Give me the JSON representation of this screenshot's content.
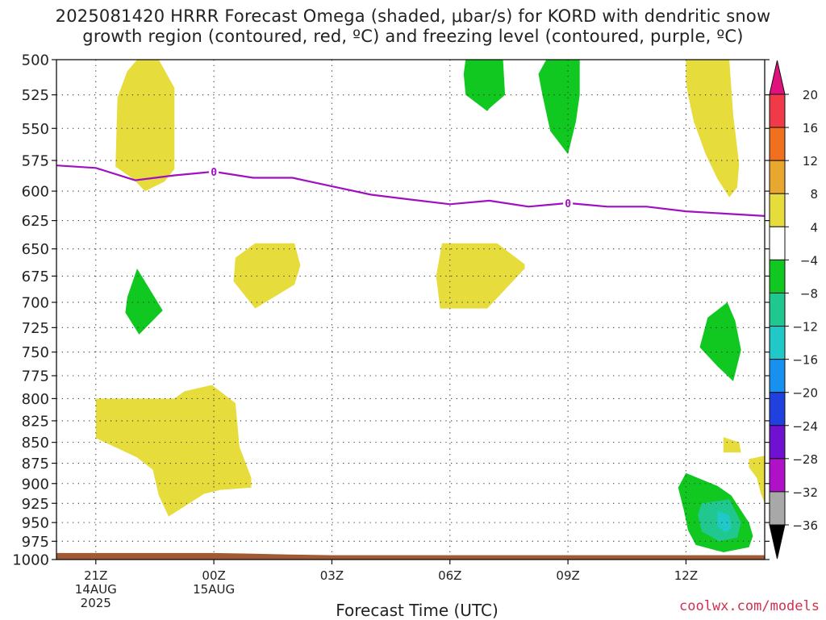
{
  "header": {
    "title_line1": "2025081420 HRRR Forecast Omega (shaded, μbar/s) for KORD with dendritic snow",
    "title_line2": "growth region (contoured, red, ºC) and freezing level (contoured, purple, ºC)"
  },
  "footer": {
    "credit": "coolwx.com/models"
  },
  "chart_data": {
    "type": "heatmap",
    "title": "2025081420 HRRR Forecast Omega (shaded, μbar/s) for KORD with dendritic snow growth region (contoured, red, ºC) and freezing level (contoured, purple, ºC)",
    "xlabel": "Forecast Time (UTC)",
    "ylabel": "",
    "x_unit": "hours from 2025-08-14 20Z",
    "xlim": [
      0,
      18
    ],
    "ylim": [
      1000,
      500
    ],
    "y_scale": "log-pressure",
    "grid": true,
    "x_ticks": [
      {
        "hour": 1,
        "label": "21Z",
        "sub": [
          "14AUG",
          "2025"
        ]
      },
      {
        "hour": 4,
        "label": "00Z",
        "sub": [
          "15AUG"
        ]
      },
      {
        "hour": 7,
        "label": "03Z",
        "sub": []
      },
      {
        "hour": 10,
        "label": "06Z",
        "sub": []
      },
      {
        "hour": 13,
        "label": "09Z",
        "sub": []
      },
      {
        "hour": 16,
        "label": "12Z",
        "sub": []
      }
    ],
    "y_ticks": [
      500,
      525,
      550,
      575,
      600,
      625,
      650,
      675,
      700,
      725,
      750,
      775,
      800,
      825,
      850,
      875,
      900,
      925,
      950,
      975,
      1000
    ],
    "colorbar": {
      "labels": [
        "20",
        "16",
        "12",
        "8",
        "4",
        "−4",
        "−8",
        "−12",
        "−16",
        "−20",
        "−24",
        "−28",
        "−32",
        "−36"
      ],
      "bins": [
        {
          "range": [
            16,
            20
          ],
          "color": "#f03a4a"
        },
        {
          "range": [
            12,
            16
          ],
          "color": "#f07020"
        },
        {
          "range": [
            8,
            12
          ],
          "color": "#e8a830"
        },
        {
          "range": [
            4,
            8
          ],
          "color": "#e6dc3c"
        },
        {
          "range": [
            -4,
            4
          ],
          "color": "#ffffff"
        },
        {
          "range": [
            -8,
            -4
          ],
          "color": "#10c820"
        },
        {
          "range": [
            -12,
            -8
          ],
          "color": "#20c890"
        },
        {
          "range": [
            -16,
            -12
          ],
          "color": "#20c8c8"
        },
        {
          "range": [
            -20,
            -16
          ],
          "color": "#1890f0"
        },
        {
          "range": [
            -24,
            -20
          ],
          "color": "#2040e0"
        },
        {
          "range": [
            -28,
            -24
          ],
          "color": "#7010d0"
        },
        {
          "range": [
            -32,
            -28
          ],
          "color": "#b010c8"
        },
        {
          "range": [
            -36,
            -32
          ],
          "color": "#a8a8a8"
        }
      ],
      "top_arrow_color": "#e0107c",
      "bottom_arrow_color": "#000000"
    },
    "omega_regions": [
      {
        "color": "#e6dc3c",
        "points": [
          [
            2.05,
            500
          ],
          [
            2.6,
            500
          ],
          [
            3.0,
            520
          ],
          [
            3.0,
            582
          ],
          [
            2.75,
            592
          ],
          [
            2.25,
            600
          ],
          [
            1.95,
            590
          ],
          [
            1.5,
            580
          ],
          [
            1.55,
            527
          ],
          [
            1.8,
            508
          ]
        ]
      },
      {
        "color": "#e6dc3c",
        "points": [
          [
            5.05,
            645
          ],
          [
            6.05,
            645
          ],
          [
            6.2,
            665
          ],
          [
            6.05,
            683
          ],
          [
            5.05,
            706
          ],
          [
            4.5,
            680
          ],
          [
            4.55,
            658
          ]
        ]
      },
      {
        "color": "#e6dc3c",
        "points": [
          [
            9.8,
            645
          ],
          [
            11.2,
            645
          ],
          [
            11.9,
            664
          ],
          [
            11.9,
            668
          ],
          [
            10.95,
            706
          ],
          [
            9.75,
            706
          ],
          [
            9.65,
            675
          ]
        ]
      },
      {
        "color": "#e6dc3c",
        "points": [
          [
            1.0,
            800
          ],
          [
            2.05,
            800
          ],
          [
            3.0,
            800
          ],
          [
            3.25,
            792
          ],
          [
            3.95,
            785
          ],
          [
            4.55,
            805
          ],
          [
            4.65,
            855
          ],
          [
            4.95,
            893
          ],
          [
            4.95,
            905
          ],
          [
            4.15,
            908
          ],
          [
            3.75,
            913
          ],
          [
            3.1,
            934
          ],
          [
            2.85,
            942
          ],
          [
            2.6,
            915
          ],
          [
            2.45,
            883
          ],
          [
            2.05,
            868
          ],
          [
            1.0,
            845
          ]
        ]
      },
      {
        "color": "#e6dc3c",
        "points": [
          [
            16.0,
            500
          ],
          [
            17.1,
            500
          ],
          [
            17.2,
            540
          ],
          [
            17.35,
            578
          ],
          [
            17.3,
            597
          ],
          [
            17.1,
            605
          ],
          [
            16.8,
            590
          ],
          [
            16.5,
            570
          ],
          [
            16.2,
            545
          ],
          [
            16.05,
            525
          ],
          [
            16.0,
            515
          ]
        ]
      },
      {
        "color": "#e6dc3c",
        "points": [
          [
            16.95,
            844
          ],
          [
            17.35,
            850
          ],
          [
            17.4,
            862
          ],
          [
            16.95,
            862
          ],
          [
            16.95,
            854
          ]
        ]
      },
      {
        "color": "#e6dc3c",
        "points": [
          [
            17.6,
            870
          ],
          [
            18.0,
            866
          ],
          [
            18.0,
            925
          ],
          [
            17.9,
            912
          ],
          [
            17.8,
            893
          ],
          [
            17.6,
            880
          ]
        ]
      },
      {
        "color": "#10c820",
        "points": [
          [
            10.4,
            500
          ],
          [
            11.35,
            500
          ],
          [
            11.4,
            525
          ],
          [
            11.0,
            535
          ],
          [
            10.95,
            537
          ],
          [
            10.4,
            525
          ],
          [
            10.35,
            510
          ]
        ]
      },
      {
        "color": "#10c820",
        "points": [
          [
            12.45,
            500
          ],
          [
            12.25,
            510
          ],
          [
            12.35,
            525
          ],
          [
            12.55,
            552
          ],
          [
            13.0,
            570
          ],
          [
            13.2,
            545
          ],
          [
            13.3,
            525
          ],
          [
            13.3,
            500
          ]
        ]
      },
      {
        "color": "#10c820",
        "points": [
          [
            2.05,
            668
          ],
          [
            2.7,
            708
          ],
          [
            2.1,
            732
          ],
          [
            1.75,
            710
          ],
          [
            1.8,
            695
          ]
        ]
      },
      {
        "color": "#10c820",
        "points": [
          [
            17.05,
            700
          ],
          [
            17.25,
            718
          ],
          [
            17.4,
            748
          ],
          [
            17.2,
            781
          ],
          [
            16.8,
            765
          ],
          [
            16.35,
            745
          ],
          [
            16.55,
            715
          ]
        ]
      },
      {
        "color": "#10c820",
        "points": [
          [
            16.0,
            887
          ],
          [
            16.8,
            903
          ],
          [
            17.15,
            915
          ],
          [
            17.6,
            950
          ],
          [
            17.7,
            968
          ],
          [
            17.6,
            983
          ],
          [
            16.95,
            990
          ],
          [
            16.25,
            980
          ],
          [
            16.05,
            960
          ],
          [
            15.95,
            935
          ],
          [
            15.8,
            905
          ]
        ]
      },
      {
        "color": "#20c890",
        "points": [
          [
            16.4,
            925
          ],
          [
            17.1,
            920
          ],
          [
            17.4,
            950
          ],
          [
            17.3,
            970
          ],
          [
            16.85,
            975
          ],
          [
            16.4,
            962
          ],
          [
            16.3,
            940
          ]
        ]
      },
      {
        "color": "#20c8c8",
        "points": [
          [
            16.8,
            935
          ],
          [
            17.1,
            940
          ],
          [
            17.15,
            958
          ],
          [
            17.0,
            963
          ],
          [
            16.8,
            955
          ]
        ]
      }
    ],
    "freezing_level": {
      "label": "0",
      "points": [
        [
          0,
          579
        ],
        [
          1,
          581
        ],
        [
          2,
          591
        ],
        [
          3,
          587
        ],
        [
          4,
          584
        ],
        [
          5,
          589
        ],
        [
          6,
          589
        ],
        [
          7,
          596
        ],
        [
          8,
          603
        ],
        [
          9,
          607
        ],
        [
          10,
          611
        ],
        [
          11,
          608
        ],
        [
          12,
          613
        ],
        [
          13,
          610
        ],
        [
          14,
          613
        ],
        [
          15,
          613
        ],
        [
          16,
          617
        ],
        [
          17,
          619
        ],
        [
          18,
          621
        ]
      ],
      "label_hours": [
        4,
        13
      ],
      "color": "#a010c0"
    },
    "terrain": {
      "color": "#a05a34",
      "points": [
        [
          0,
          991
        ],
        [
          4,
          991
        ],
        [
          5,
          992
        ],
        [
          5.9,
          993
        ],
        [
          7,
          994
        ],
        [
          12,
          994
        ],
        [
          18,
          994
        ]
      ]
    }
  }
}
